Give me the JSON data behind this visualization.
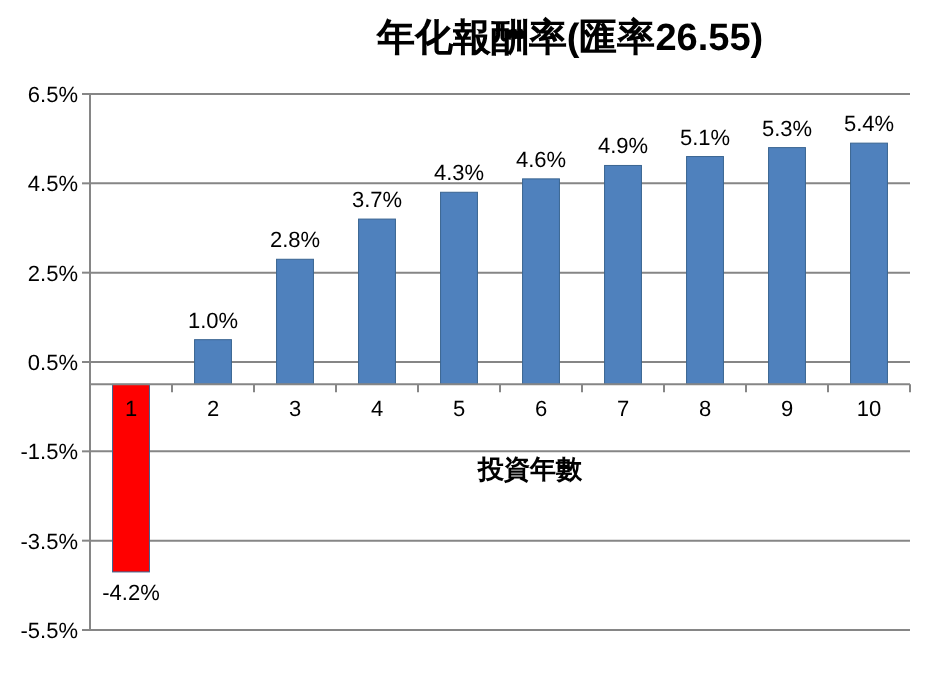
{
  "chart_data": {
    "type": "bar",
    "title": "年化報酬率(匯率26.55)",
    "xlabel": "投資年數",
    "categories": [
      "1",
      "2",
      "3",
      "4",
      "5",
      "6",
      "7",
      "8",
      "9",
      "10"
    ],
    "values": [
      -4.2,
      1.0,
      2.8,
      3.7,
      4.3,
      4.6,
      4.9,
      5.1,
      5.3,
      5.4
    ],
    "value_labels": [
      "-4.2%",
      "1.0%",
      "2.8%",
      "3.7%",
      "4.3%",
      "4.6%",
      "4.9%",
      "5.1%",
      "5.3%",
      "5.4%"
    ],
    "colors": [
      "#ff0000",
      "#4f81bd",
      "#4f81bd",
      "#4f81bd",
      "#4f81bd",
      "#4f81bd",
      "#4f81bd",
      "#4f81bd",
      "#4f81bd",
      "#4f81bd"
    ],
    "ylim": [
      -5.5,
      6.5
    ],
    "yticks": [
      {
        "value": -5.5,
        "label": "-5.5%"
      },
      {
        "value": -3.5,
        "label": "-3.5%"
      },
      {
        "value": -1.5,
        "label": "-1.5%"
      },
      {
        "value": 0.5,
        "label": "0.5%"
      },
      {
        "value": 2.5,
        "label": "2.5%"
      },
      {
        "value": 4.5,
        "label": "4.5%"
      },
      {
        "value": 6.5,
        "label": "6.5%"
      }
    ],
    "grid": "y"
  }
}
